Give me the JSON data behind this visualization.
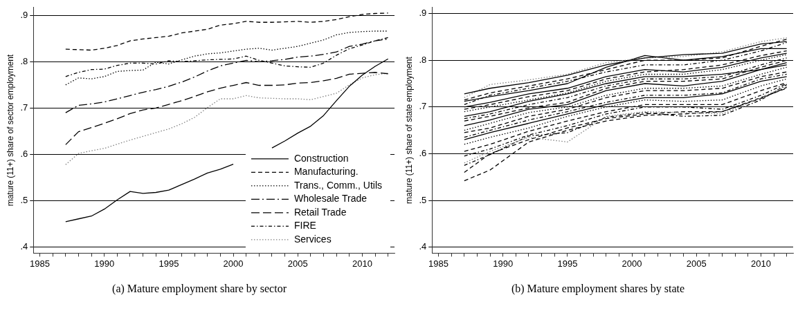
{
  "chart_data": [
    {
      "type": "line",
      "title": "(a) Mature employment share by sector",
      "ylabel": "mature (11+) share of sector employment",
      "x": [
        1987,
        1988,
        1989,
        1990,
        1991,
        1992,
        1993,
        1994,
        1995,
        1996,
        1997,
        1998,
        1999,
        2000,
        2001,
        2002,
        2003,
        2004,
        2005,
        2006,
        2007,
        2008,
        2009,
        2010,
        2011,
        2012
      ],
      "xlim": [
        1984.5,
        2012.5
      ],
      "xticks": [
        1985,
        {
          "value": 1986,
          "label": null
        },
        {
          "value": 1987,
          "label": null
        },
        {
          "value": 1988,
          "label": null
        },
        {
          "value": 1989,
          "label": null
        },
        1990,
        {
          "value": 1991,
          "label": null
        },
        {
          "value": 1992,
          "label": null
        },
        {
          "value": 1993,
          "label": null
        },
        {
          "value": 1994,
          "label": null
        },
        1995,
        {
          "value": 1996,
          "label": null
        },
        {
          "value": 1997,
          "label": null
        },
        {
          "value": 1998,
          "label": null
        },
        {
          "value": 1999,
          "label": null
        },
        2000,
        {
          "value": 2001,
          "label": null
        },
        {
          "value": 2002,
          "label": null
        },
        {
          "value": 2003,
          "label": null
        },
        {
          "value": 2004,
          "label": null
        },
        2005,
        {
          "value": 2006,
          "label": null
        },
        {
          "value": 2007,
          "label": null
        },
        {
          "value": 2008,
          "label": null
        },
        {
          "value": 2009,
          "label": null
        },
        2010,
        {
          "value": 2011,
          "label": null
        },
        {
          "value": 2012,
          "label": null
        }
      ],
      "ylim": [
        0.387,
        0.917
      ],
      "yticks": [
        {
          "value": 0.4,
          "label": ".4"
        },
        {
          "value": 0.5,
          "label": ".5"
        },
        {
          "value": 0.6,
          "label": ".6"
        },
        {
          "value": 0.7,
          "label": ".7"
        },
        {
          "value": 0.8,
          "label": ".8"
        },
        {
          "value": 0.9,
          "label": ".9"
        }
      ],
      "grid": "y",
      "legend": "bottom right",
      "marker": "none",
      "series": [
        {
          "name": "Construction",
          "color": "#000000",
          "line_style": "solid",
          "values": [
            0.455,
            0.461,
            0.467,
            0.482,
            0.502,
            0.52,
            0.516,
            0.518,
            0.523,
            0.535,
            0.547,
            0.56,
            0.568,
            0.579,
            null,
            null,
            0.614,
            0.629,
            0.646,
            0.661,
            0.684,
            0.716,
            0.747,
            0.771,
            0.79,
            0.806
          ]
        },
        {
          "name": "Manufacturing.",
          "color": "#000000",
          "line_style": "dashed",
          "values": [
            0.827,
            0.826,
            0.825,
            0.829,
            0.835,
            0.845,
            0.849,
            0.852,
            0.855,
            0.862,
            0.866,
            0.87,
            0.879,
            0.882,
            0.887,
            0.885,
            0.885,
            0.886,
            0.887,
            0.885,
            0.887,
            0.891,
            0.897,
            0.902,
            0.904,
            0.905
          ]
        },
        {
          "name": "Trans., Comm., Utils",
          "color": "#000000",
          "line_style": "dotted",
          "values": [
            0.75,
            0.765,
            0.763,
            0.768,
            0.779,
            0.781,
            0.782,
            0.799,
            0.795,
            0.804,
            0.812,
            0.817,
            0.819,
            0.823,
            0.827,
            0.829,
            0.825,
            0.829,
            0.833,
            0.84,
            0.847,
            0.858,
            0.863,
            0.865,
            0.866,
            0.866
          ]
        },
        {
          "name": "Wholesale Trade",
          "color": "#000000",
          "line_style": "longdashdot",
          "values": [
            0.69,
            0.706,
            0.709,
            0.713,
            0.72,
            0.727,
            0.734,
            0.74,
            0.747,
            0.756,
            0.767,
            0.78,
            0.791,
            0.797,
            0.803,
            0.8,
            0.802,
            0.805,
            0.81,
            0.812,
            0.816,
            0.821,
            0.833,
            0.838,
            0.845,
            0.849
          ]
        },
        {
          "name": "Retail Trade",
          "color": "#000000",
          "line_style": "longdash",
          "values": [
            0.621,
            0.649,
            0.658,
            0.667,
            0.677,
            0.688,
            0.696,
            0.7,
            0.708,
            0.716,
            0.725,
            0.735,
            0.743,
            0.749,
            0.755,
            0.749,
            0.749,
            0.75,
            0.754,
            0.755,
            0.759,
            0.764,
            0.773,
            0.775,
            0.777,
            0.774
          ]
        },
        {
          "name": "FIRE",
          "color": "#000000",
          "line_style": "dashdot",
          "values": [
            0.768,
            0.777,
            0.783,
            0.784,
            0.792,
            0.797,
            0.797,
            0.795,
            0.802,
            0.8,
            0.802,
            0.804,
            0.805,
            0.806,
            0.812,
            0.803,
            0.797,
            0.791,
            0.789,
            0.788,
            0.797,
            0.814,
            0.828,
            0.836,
            0.845,
            0.852
          ]
        },
        {
          "name": "Services",
          "color": "#808080",
          "line_style": "dotted",
          "values": [
            0.578,
            0.602,
            0.608,
            0.613,
            0.622,
            0.631,
            0.639,
            0.647,
            0.655,
            0.666,
            0.68,
            0.701,
            0.72,
            0.72,
            0.727,
            0.722,
            0.721,
            0.72,
            0.72,
            0.718,
            0.725,
            0.732,
            0.75,
            0.765,
            0.772,
            0.775
          ]
        }
      ]
    },
    {
      "type": "line",
      "title": "(b) Mature employment shares by state",
      "ylabel": "mature (11+) share of state employment",
      "x": [
        1987,
        1989,
        1992,
        1995,
        1998,
        2001,
        2004,
        2007,
        2010,
        2012
      ],
      "xlim": [
        1984.5,
        2012.5
      ],
      "xticks": [
        1985,
        {
          "value": 1986,
          "label": null
        },
        {
          "value": 1987,
          "label": null
        },
        {
          "value": 1988,
          "label": null
        },
        {
          "value": 1989,
          "label": null
        },
        1990,
        {
          "value": 1991,
          "label": null
        },
        {
          "value": 1992,
          "label": null
        },
        {
          "value": 1993,
          "label": null
        },
        {
          "value": 1994,
          "label": null
        },
        1995,
        {
          "value": 1996,
          "label": null
        },
        {
          "value": 1997,
          "label": null
        },
        {
          "value": 1998,
          "label": null
        },
        {
          "value": 1999,
          "label": null
        },
        2000,
        {
          "value": 2001,
          "label": null
        },
        {
          "value": 2002,
          "label": null
        },
        {
          "value": 2003,
          "label": null
        },
        {
          "value": 2004,
          "label": null
        },
        2005,
        {
          "value": 2006,
          "label": null
        },
        {
          "value": 2007,
          "label": null
        },
        {
          "value": 2008,
          "label": null
        },
        {
          "value": 2009,
          "label": null
        },
        2010,
        {
          "value": 2011,
          "label": null
        },
        {
          "value": 2012,
          "label": null
        }
      ],
      "ylim": [
        0.387,
        0.913
      ],
      "yticks": [
        {
          "value": 0.4,
          "label": ".4"
        },
        {
          "value": 0.5,
          "label": ".5"
        },
        {
          "value": 0.6,
          "label": ".6"
        },
        {
          "value": 0.7,
          "label": ".7"
        },
        {
          "value": 0.8,
          "label": ".8"
        },
        {
          "value": 0.9,
          "label": ".9"
        }
      ],
      "grid": "y",
      "marker": "none",
      "series": [
        {
          "color": "#000000",
          "line_style": "solid",
          "values": [
            0.728,
            0.74,
            0.752,
            0.768,
            0.79,
            0.805,
            0.812,
            0.815,
            0.835,
            0.84
          ]
        },
        {
          "color": "#808080",
          "line_style": "dotted",
          "values": [
            0.72,
            0.748,
            0.758,
            0.77,
            0.795,
            0.805,
            0.808,
            0.818,
            0.84,
            0.848
          ]
        },
        {
          "color": "#000000",
          "line_style": "dashed",
          "values": [
            0.715,
            0.73,
            0.745,
            0.76,
            0.78,
            0.8,
            0.8,
            0.805,
            0.83,
            0.845
          ]
        },
        {
          "color": "#000000",
          "line_style": "solid",
          "values": [
            0.712,
            0.722,
            0.735,
            0.75,
            0.785,
            0.81,
            0.8,
            0.808,
            0.825,
            0.825
          ]
        },
        {
          "color": "#000000",
          "line_style": "dashdot",
          "values": [
            0.705,
            0.725,
            0.74,
            0.755,
            0.775,
            0.79,
            0.79,
            0.8,
            0.82,
            0.838
          ]
        },
        {
          "color": "#000000",
          "line_style": "solid",
          "values": [
            0.7,
            0.71,
            0.728,
            0.74,
            0.765,
            0.78,
            0.775,
            0.785,
            0.805,
            0.815
          ]
        },
        {
          "color": "#000000",
          "line_style": "dashed",
          "values": [
            0.695,
            0.705,
            0.722,
            0.735,
            0.76,
            0.775,
            0.78,
            0.79,
            0.81,
            0.82
          ]
        },
        {
          "color": "#000000",
          "line_style": "dotted",
          "values": [
            0.69,
            0.7,
            0.715,
            0.73,
            0.755,
            0.77,
            0.77,
            0.78,
            0.8,
            0.812
          ]
        },
        {
          "color": "#000000",
          "line_style": "solid",
          "values": [
            0.68,
            0.69,
            0.712,
            0.728,
            0.75,
            0.765,
            0.765,
            0.77,
            0.78,
            0.795
          ]
        },
        {
          "color": "#000000",
          "line_style": "dashdot",
          "values": [
            0.675,
            0.685,
            0.705,
            0.72,
            0.745,
            0.76,
            0.76,
            0.765,
            0.79,
            0.805
          ]
        },
        {
          "color": "#000000",
          "line_style": "dashed",
          "values": [
            0.67,
            0.68,
            0.698,
            0.71,
            0.74,
            0.755,
            0.755,
            0.76,
            0.785,
            0.8
          ]
        },
        {
          "color": "#000000",
          "line_style": "solid",
          "values": [
            0.66,
            0.672,
            0.695,
            0.705,
            0.735,
            0.75,
            0.745,
            0.755,
            0.78,
            0.79
          ]
        },
        {
          "color": "#000000",
          "line_style": "dotted",
          "values": [
            0.65,
            0.665,
            0.688,
            0.7,
            0.725,
            0.74,
            0.74,
            0.745,
            0.77,
            0.785
          ]
        },
        {
          "color": "#000000",
          "line_style": "dashed",
          "values": [
            0.645,
            0.655,
            0.68,
            0.695,
            0.72,
            0.735,
            0.735,
            0.74,
            0.765,
            0.775
          ]
        },
        {
          "color": "#000000",
          "line_style": "dashdot",
          "values": [
            0.635,
            0.65,
            0.672,
            0.69,
            0.71,
            0.725,
            0.725,
            0.73,
            0.76,
            0.77
          ]
        },
        {
          "color": "#000000",
          "line_style": "solid",
          "values": [
            0.63,
            0.645,
            0.665,
            0.685,
            0.705,
            0.72,
            0.72,
            0.728,
            0.755,
            0.765
          ]
        },
        {
          "color": "#000000",
          "line_style": "dotted",
          "values": [
            0.62,
            0.635,
            0.655,
            0.68,
            0.7,
            0.715,
            0.712,
            0.715,
            0.745,
            0.76
          ]
        },
        {
          "color": "#000000",
          "line_style": "dashed",
          "values": [
            0.605,
            0.62,
            0.648,
            0.67,
            0.69,
            0.705,
            0.705,
            0.705,
            0.735,
            0.752
          ]
        },
        {
          "color": "#000000",
          "line_style": "dashdot",
          "values": [
            0.595,
            0.61,
            0.64,
            0.66,
            0.685,
            0.7,
            0.7,
            0.695,
            0.725,
            0.75
          ]
        },
        {
          "color": "#808080",
          "line_style": "dotted",
          "values": [
            0.58,
            0.605,
            0.635,
            0.625,
            0.68,
            0.69,
            0.688,
            0.685,
            0.72,
            0.745
          ]
        },
        {
          "color": "#000000",
          "line_style": "dashed",
          "values": [
            0.56,
            0.6,
            0.63,
            0.655,
            0.675,
            0.685,
            0.69,
            0.69,
            0.72,
            0.74
          ]
        },
        {
          "color": "#000000",
          "line_style": "dashed",
          "values": [
            0.542,
            0.565,
            0.625,
            0.65,
            0.67,
            0.682,
            0.685,
            0.69,
            0.718,
            0.742
          ]
        },
        {
          "color": "#000000",
          "line_style": "dashdot",
          "values": [
            0.575,
            0.598,
            0.638,
            0.645,
            0.678,
            0.688,
            0.68,
            0.682,
            0.715,
            0.748
          ]
        }
      ]
    }
  ]
}
